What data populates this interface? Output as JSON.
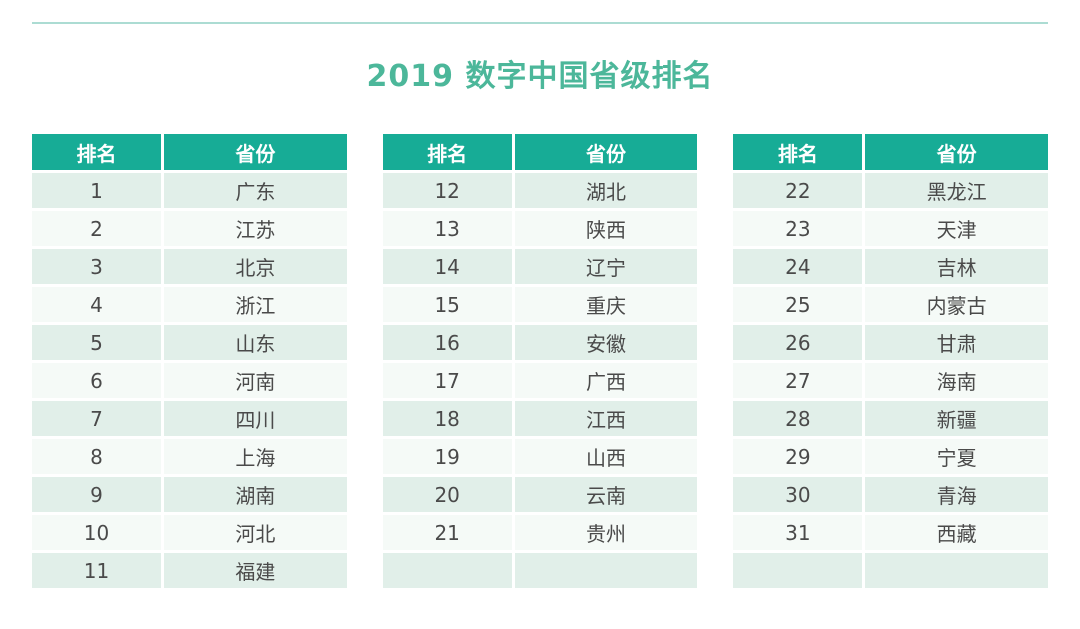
{
  "page": {
    "title": "2019 数字中国省级排名"
  },
  "headers": {
    "rank": "排名",
    "province": "省份"
  },
  "tables": [
    {
      "rows": [
        {
          "rank": "1",
          "province": "广东"
        },
        {
          "rank": "2",
          "province": "江苏"
        },
        {
          "rank": "3",
          "province": "北京"
        },
        {
          "rank": "4",
          "province": "浙江"
        },
        {
          "rank": "5",
          "province": "山东"
        },
        {
          "rank": "6",
          "province": "河南"
        },
        {
          "rank": "7",
          "province": "四川"
        },
        {
          "rank": "8",
          "province": "上海"
        },
        {
          "rank": "9",
          "province": "湖南"
        },
        {
          "rank": "10",
          "province": "河北"
        },
        {
          "rank": "11",
          "province": "福建"
        }
      ]
    },
    {
      "rows": [
        {
          "rank": "12",
          "province": "湖北"
        },
        {
          "rank": "13",
          "province": "陕西"
        },
        {
          "rank": "14",
          "province": "辽宁"
        },
        {
          "rank": "15",
          "province": "重庆"
        },
        {
          "rank": "16",
          "province": "安徽"
        },
        {
          "rank": "17",
          "province": "广西"
        },
        {
          "rank": "18",
          "province": "江西"
        },
        {
          "rank": "19",
          "province": "山西"
        },
        {
          "rank": "20",
          "province": "云南"
        },
        {
          "rank": "21",
          "province": "贵州"
        },
        {
          "rank": "",
          "province": ""
        }
      ]
    },
    {
      "rows": [
        {
          "rank": "22",
          "province": "黑龙江"
        },
        {
          "rank": "23",
          "province": "天津"
        },
        {
          "rank": "24",
          "province": "吉林"
        },
        {
          "rank": "25",
          "province": "内蒙古"
        },
        {
          "rank": "26",
          "province": "甘肃"
        },
        {
          "rank": "27",
          "province": "海南"
        },
        {
          "rank": "28",
          "province": "新疆"
        },
        {
          "rank": "29",
          "province": "宁夏"
        },
        {
          "rank": "30",
          "province": "青海"
        },
        {
          "rank": "31",
          "province": "西藏"
        },
        {
          "rank": "",
          "province": ""
        }
      ]
    }
  ],
  "colors": {
    "header_bg": "#17AC96",
    "row_odd": "#E1EFE9",
    "row_even": "#F5FAF7",
    "title_color": "#4CB79A",
    "top_line": "#ACDCD3",
    "cell_text": "#4A4A4A",
    "header_text": "#FFFFFF"
  },
  "chart_data": {
    "type": "table",
    "title": "2019 数字中国省级排名",
    "columns": [
      "排名",
      "省份"
    ],
    "rows": [
      [
        1,
        "广东"
      ],
      [
        2,
        "江苏"
      ],
      [
        3,
        "北京"
      ],
      [
        4,
        "浙江"
      ],
      [
        5,
        "山东"
      ],
      [
        6,
        "河南"
      ],
      [
        7,
        "四川"
      ],
      [
        8,
        "上海"
      ],
      [
        9,
        "湖南"
      ],
      [
        10,
        "河北"
      ],
      [
        11,
        "福建"
      ],
      [
        12,
        "湖北"
      ],
      [
        13,
        "陕西"
      ],
      [
        14,
        "辽宁"
      ],
      [
        15,
        "重庆"
      ],
      [
        16,
        "安徽"
      ],
      [
        17,
        "广西"
      ],
      [
        18,
        "江西"
      ],
      [
        19,
        "山西"
      ],
      [
        20,
        "云南"
      ],
      [
        21,
        "贵州"
      ],
      [
        22,
        "黑龙江"
      ],
      [
        23,
        "天津"
      ],
      [
        24,
        "吉林"
      ],
      [
        25,
        "内蒙古"
      ],
      [
        26,
        "甘肃"
      ],
      [
        27,
        "海南"
      ],
      [
        28,
        "新疆"
      ],
      [
        29,
        "宁夏"
      ],
      [
        30,
        "青海"
      ],
      [
        31,
        "西藏"
      ]
    ],
    "layout": "three side-by-side tables of 11 rows each; last row of tables 2 and 3 empty"
  }
}
